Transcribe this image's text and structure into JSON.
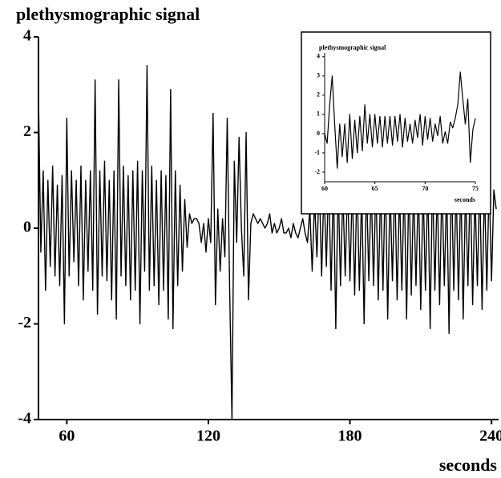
{
  "chart_data": [
    {
      "type": "line",
      "title": "plethysmographic signal",
      "xlabel": "seconds",
      "color": "#000000",
      "xlim": [
        48,
        243
      ],
      "ylim": [
        -4,
        4
      ],
      "xticks": [
        60,
        120,
        180,
        240
      ],
      "yticks": [
        -4,
        -2,
        0,
        2,
        4
      ],
      "grid": false,
      "x": [
        48,
        49,
        50,
        51,
        52,
        53,
        54,
        55,
        56,
        57,
        58,
        59,
        60,
        61,
        62,
        63,
        64,
        65,
        66,
        67,
        68,
        69,
        70,
        71,
        72,
        73,
        74,
        75,
        76,
        77,
        78,
        79,
        80,
        81,
        82,
        83,
        84,
        85,
        86,
        87,
        88,
        89,
        90,
        91,
        92,
        93,
        94,
        95,
        96,
        97,
        98,
        99,
        100,
        101,
        102,
        103,
        104,
        105,
        106,
        107,
        108,
        109,
        110,
        111,
        112,
        113,
        114,
        115,
        116,
        117,
        118,
        119,
        120,
        121,
        122,
        123,
        124,
        125,
        126,
        127,
        128,
        129,
        130,
        131,
        132,
        133,
        134,
        135,
        136,
        137,
        138,
        139,
        140,
        141,
        142,
        143,
        144,
        145,
        146,
        147,
        148,
        149,
        150,
        151,
        152,
        153,
        154,
        155,
        156,
        157,
        158,
        159,
        160,
        161,
        162,
        163,
        164,
        165,
        166,
        167,
        168,
        169,
        170,
        171,
        172,
        173,
        174,
        175,
        176,
        177,
        178,
        179,
        180,
        181,
        182,
        183,
        184,
        185,
        186,
        187,
        188,
        189,
        190,
        191,
        192,
        193,
        194,
        195,
        196,
        197,
        198,
        199,
        200,
        201,
        202,
        203,
        204,
        205,
        206,
        207,
        208,
        209,
        210,
        211,
        212,
        213,
        214,
        215,
        216,
        217,
        218,
        219,
        220,
        221,
        222,
        223,
        224,
        225,
        226,
        227,
        228,
        229,
        230,
        231,
        232,
        233,
        234,
        235,
        236,
        237,
        238,
        239,
        240,
        241,
        242
      ],
      "values": [
        2.8,
        -0.5,
        1.2,
        -1.3,
        1.0,
        -0.8,
        1.3,
        -1.0,
        0.9,
        -1.2,
        1.1,
        -2.0,
        2.3,
        -1.0,
        1.2,
        -0.7,
        1.0,
        -1.2,
        1.3,
        -1.5,
        1.0,
        -0.9,
        1.2,
        -1.3,
        3.1,
        -1.8,
        1.2,
        -1.0,
        1.4,
        -1.1,
        1.0,
        -1.5,
        1.2,
        -1.9,
        3.1,
        -1.0,
        1.3,
        -1.2,
        1.1,
        -1.5,
        1.2,
        -1.3,
        1.4,
        -2.0,
        1.2,
        -0.9,
        3.4,
        -1.3,
        1.3,
        -1.2,
        1.0,
        -1.6,
        1.2,
        -1.3,
        1.1,
        -1.9,
        2.9,
        -2.1,
        1.2,
        -1.2,
        0.9,
        -0.9,
        0.6,
        -0.4,
        0.3,
        0.1,
        0.2,
        0.2,
        0.1,
        -0.3,
        0.1,
        -0.5,
        0.2,
        -0.3,
        2.4,
        -1.6,
        0.4,
        -0.9,
        0.2,
        -0.6,
        2.3,
        -1.2,
        -4.0,
        1.4,
        -0.3,
        1.9,
        0.0,
        -1.0,
        2.0,
        -1.5,
        0.1,
        0.3,
        0.2,
        0.1,
        0.2,
        0.1,
        0.0,
        0.1,
        0.3,
        -0.1,
        0.1,
        -0.1,
        0.0,
        0.2,
        -0.1,
        -0.1,
        0.0,
        -0.2,
        0.1,
        -0.1,
        -0.2,
        0.0,
        0.2,
        -0.1,
        -0.3,
        0.4,
        -0.9,
        0.6,
        -0.6,
        1.0,
        -1.0,
        0.9,
        -0.8,
        1.1,
        -1.3,
        1.0,
        -2.1,
        1.0,
        -1.2,
        0.8,
        -1.0,
        1.0,
        -1.1,
        0.9,
        -1.4,
        1.1,
        -1.3,
        0.8,
        -2.0,
        1.0,
        -1.1,
        0.9,
        -1.2,
        1.0,
        -1.5,
        0.9,
        -1.3,
        1.2,
        -1.9,
        0.9,
        -1.1,
        1.0,
        -1.5,
        0.8,
        -1.3,
        1.0,
        -1.9,
        1.1,
        -1.4,
        0.9,
        -1.2,
        1.0,
        -1.7,
        0.9,
        -1.3,
        1.0,
        -2.1,
        1.1,
        -1.3,
        0.9,
        -1.6,
        1.0,
        -1.2,
        0.9,
        -2.2,
        1.2,
        -1.3,
        0.9,
        -1.5,
        1.0,
        -1.9,
        0.9,
        -1.2,
        1.1,
        -1.6,
        0.8,
        -1.2,
        1.0,
        -1.7,
        0.9,
        -1.3,
        1.0,
        -1.1,
        0.8,
        0.4
      ]
    },
    {
      "type": "line",
      "title": "plethysmographic signal",
      "xlabel": "seconds",
      "color": "#000000",
      "xlim": [
        60,
        75
      ],
      "ylim": [
        -2.5,
        4.2
      ],
      "xticks": [
        60,
        65,
        70,
        75
      ],
      "yticks": [
        -2,
        -1,
        0,
        1,
        2,
        3,
        4
      ],
      "grid": false,
      "x": [
        60,
        60.25,
        60.5,
        60.75,
        61,
        61.25,
        61.5,
        61.75,
        62,
        62.25,
        62.5,
        62.75,
        63,
        63.25,
        63.5,
        63.75,
        64,
        64.25,
        64.5,
        64.75,
        65,
        65.25,
        65.5,
        65.75,
        66,
        66.25,
        66.5,
        66.75,
        67,
        67.25,
        67.5,
        67.75,
        68,
        68.25,
        68.5,
        68.75,
        69,
        69.25,
        69.5,
        69.75,
        70,
        70.25,
        70.5,
        70.75,
        71,
        71.25,
        71.5,
        71.75,
        72,
        72.25,
        72.5,
        72.75,
        73,
        73.25,
        73.5,
        73.75,
        74,
        74.25,
        74.5,
        74.75,
        75
      ],
      "values": [
        0,
        -0.5,
        1.5,
        3.0,
        0.5,
        -1.8,
        0.5,
        -1.2,
        0.5,
        -1.5,
        1.0,
        -1.3,
        0.7,
        -1.0,
        0.9,
        -0.9,
        1.5,
        -0.5,
        1.0,
        -0.7,
        1.0,
        -0.5,
        0.9,
        -0.7,
        0.9,
        -0.5,
        0.9,
        -0.6,
        0.9,
        -0.4,
        1.0,
        -0.7,
        0.8,
        -0.4,
        0.5,
        -0.5,
        0.7,
        -0.2,
        1.0,
        -0.6,
        0.9,
        -0.3,
        0.8,
        -0.4,
        0.5,
        -0.1,
        0.9,
        -0.5,
        0.1,
        -0.5,
        0.6,
        0.3,
        0.8,
        1.5,
        3.2,
        1.8,
        0.5,
        1.8,
        -1.5,
        0.2,
        0.8
      ]
    }
  ]
}
